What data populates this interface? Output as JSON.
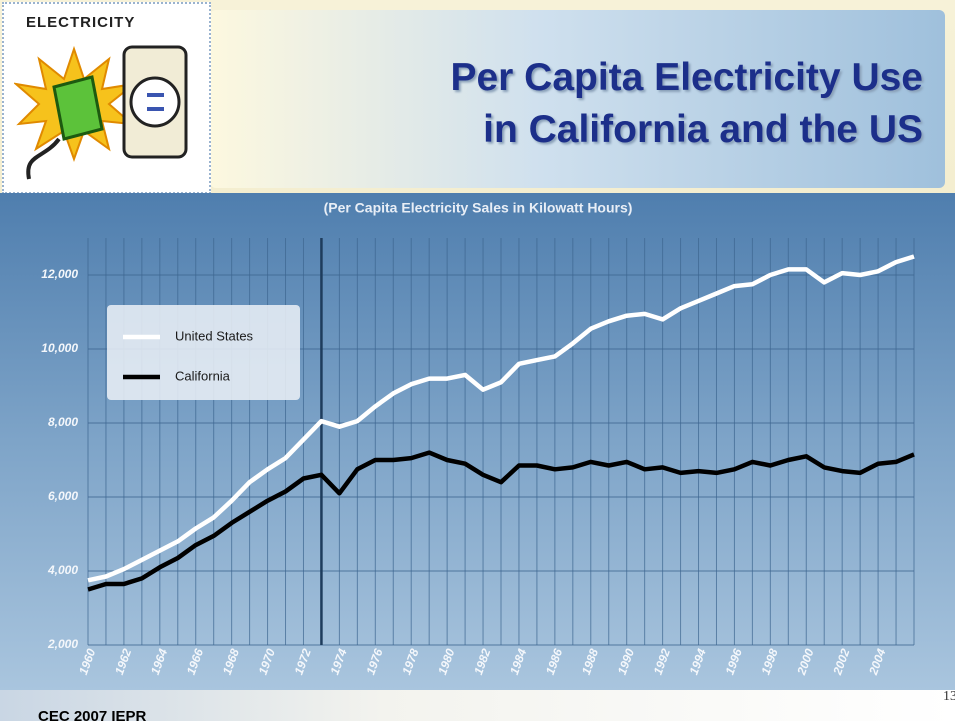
{
  "slide": {
    "section": "ELECTRICITY",
    "footer": "CEC 2007 IEPR",
    "page_number": "13"
  },
  "chart_data": {
    "type": "line",
    "title": "Per Capita Electricity Use\nin California and the US",
    "subtitle": "(Per Capita Electricity Sales in Kilowatt Hours)",
    "x": [
      1960,
      1961,
      1962,
      1963,
      1964,
      1965,
      1966,
      1967,
      1968,
      1969,
      1970,
      1971,
      1972,
      1973,
      1974,
      1975,
      1976,
      1977,
      1978,
      1979,
      1980,
      1981,
      1982,
      1983,
      1984,
      1985,
      1986,
      1987,
      1988,
      1989,
      1990,
      1991,
      1992,
      1993,
      1994,
      1995,
      1996,
      1997,
      1998,
      1999,
      2000,
      2001,
      2002,
      2003,
      2004,
      2005,
      2006
    ],
    "series": [
      {
        "name": "United States",
        "color": "#ffffff",
        "values": [
          3750,
          3850,
          4050,
          4300,
          4550,
          4800,
          5150,
          5450,
          5900,
          6400,
          6750,
          7050,
          7550,
          8050,
          7900,
          8050,
          8450,
          8800,
          9050,
          9200,
          9200,
          9300,
          8900,
          9100,
          9600,
          9700,
          9800,
          10150,
          10550,
          10750,
          10900,
          10950,
          10800,
          11100,
          11300,
          11500,
          11700,
          11750,
          12000,
          12150,
          12150,
          11800,
          12050,
          12000,
          12100,
          12350,
          12500
        ]
      },
      {
        "name": "California",
        "color": "#000000",
        "values": [
          3500,
          3650,
          3650,
          3800,
          4100,
          4350,
          4700,
          4950,
          5300,
          5600,
          5900,
          6150,
          6500,
          6600,
          6100,
          6750,
          7000,
          7000,
          7050,
          7200,
          7000,
          6900,
          6600,
          6400,
          6850,
          6850,
          6750,
          6800,
          6950,
          6850,
          6950,
          6750,
          6800,
          6650,
          6700,
          6650,
          6750,
          6950,
          6850,
          7000,
          7100,
          6800,
          6700,
          6650,
          6900,
          6950,
          7150
        ]
      }
    ],
    "xlim": [
      1960,
      2006
    ],
    "xticks": [
      1960,
      1962,
      1964,
      1966,
      1968,
      1970,
      1972,
      1974,
      1976,
      1978,
      1980,
      1982,
      1984,
      1986,
      1988,
      1990,
      1992,
      1994,
      1996,
      1998,
      2000,
      2002,
      2004
    ],
    "ylim": [
      2000,
      13000
    ],
    "yticks": [
      {
        "value": 2000,
        "label": "2,000"
      },
      {
        "value": 4000,
        "label": "4,000"
      },
      {
        "value": 6000,
        "label": "6,000"
      },
      {
        "value": 8000,
        "label": "8,000"
      },
      {
        "value": 10000,
        "label": "10,000"
      },
      {
        "value": 12000,
        "label": "12,000"
      }
    ],
    "reference_x": 1973,
    "grid": true,
    "legend": "upper left"
  }
}
